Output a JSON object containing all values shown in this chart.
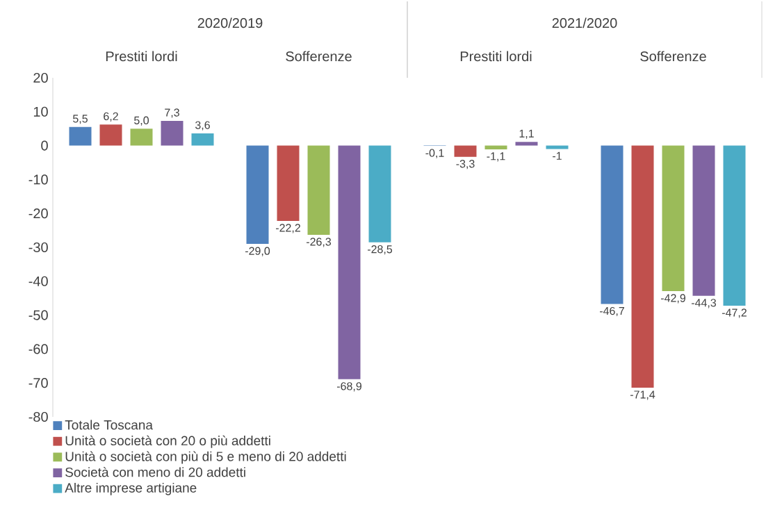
{
  "chart_data": {
    "type": "bar",
    "categories": [
      "Prestiti lordi",
      "Sofferenze",
      "Prestiti lordi",
      "Sofferenze"
    ],
    "annotations": [
      "2020/2019",
      "2021/2020"
    ],
    "series": [
      {
        "name": "Totale Toscana",
        "color": "#4f81bd",
        "values": [
          5.5,
          -29.0,
          -0.1,
          -46.7
        ],
        "value_labels": [
          "5,5",
          "-29,0",
          "-0,1",
          "-46,7"
        ]
      },
      {
        "name": "Unità o società con 20 o più addetti",
        "color": "#c0504d",
        "values": [
          6.2,
          -22.2,
          -3.3,
          -71.4
        ],
        "value_labels": [
          "6,2",
          "-22,2",
          "-3,3",
          "-71,4"
        ]
      },
      {
        "name": "Unità o società con più di 5 e meno di 20 addetti",
        "color": "#9bbb59",
        "values": [
          5.0,
          -26.3,
          -1.1,
          -42.9
        ],
        "value_labels": [
          "5,0",
          "-26,3",
          "-1,1",
          "-42,9"
        ]
      },
      {
        "name": "Società con meno di 20 addetti",
        "color": "#8064a2",
        "values": [
          7.3,
          -68.9,
          1.1,
          -44.3
        ],
        "value_labels": [
          "7,3",
          "-68,9",
          "1,1",
          "-44,3"
        ]
      },
      {
        "name": "Altre  imprese  artigiane",
        "color": "#4bacc6",
        "values": [
          3.6,
          -28.5,
          -1,
          -47.2
        ],
        "value_labels": [
          "3,6",
          "-28,5",
          "-1",
          "-47,2"
        ]
      }
    ],
    "ylim": [
      -80,
      20
    ],
    "yticks": [
      -80,
      -70,
      -60,
      -50,
      -40,
      -30,
      -20,
      -10,
      0,
      10,
      20
    ],
    "legend": "bottom"
  }
}
